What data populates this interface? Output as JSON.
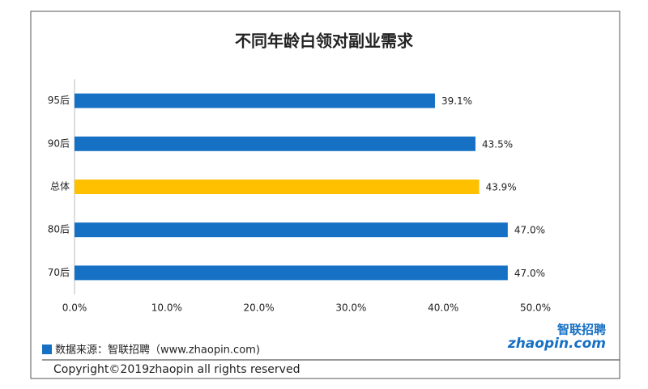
{
  "chart_data": {
    "type": "bar",
    "orientation": "horizontal",
    "title": "不同年龄白领对副业需求",
    "categories": [
      "95后",
      "90后",
      "总体",
      "80后",
      "70后"
    ],
    "values": [
      39.1,
      43.5,
      43.9,
      47.0,
      47.0
    ],
    "value_labels": [
      "39.1%",
      "43.5%",
      "43.9%",
      "47.0%",
      "47.0%"
    ],
    "colors": [
      "#1670c4",
      "#1670c4",
      "#ffc000",
      "#1670c4",
      "#1670c4"
    ],
    "xlim": [
      0,
      50
    ],
    "xticks": [
      {
        "value": 0,
        "label": "0.0%"
      },
      {
        "value": 10,
        "label": "10.0%"
      },
      {
        "value": 20,
        "label": "20.0%"
      },
      {
        "value": 30,
        "label": "30.0%"
      },
      {
        "value": 40,
        "label": "40.0%"
      },
      {
        "value": 50,
        "label": "50.0%"
      }
    ],
    "source": "数据来源：智联招聘（www.zhaopin.com)",
    "copyright": "Copyright©2019zhaopin all rights reserved",
    "logo": {
      "cn": "智联招聘",
      "en": "zhaopin.com"
    }
  }
}
